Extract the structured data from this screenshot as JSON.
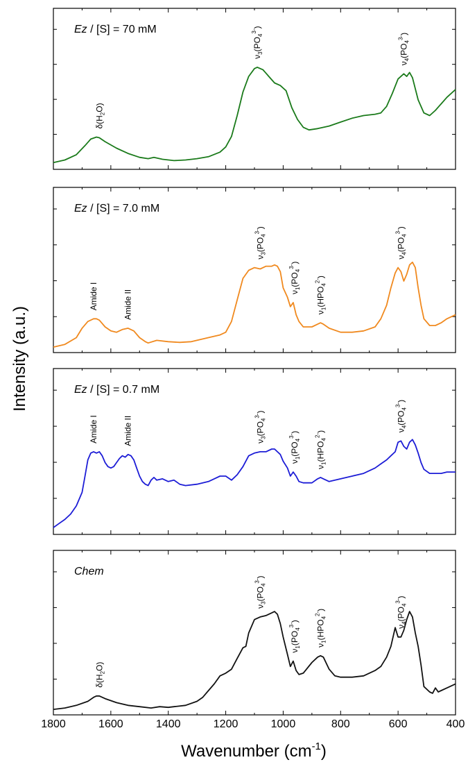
{
  "figure": {
    "ylabel": "Intensity (a.u.)",
    "xlabel_main": "Wavenumber (cm",
    "xlabel_sup": "-1",
    "xlabel_close": ")"
  },
  "chart_data": {
    "type": "line",
    "xlim": [
      1800,
      400
    ],
    "x_reversed": true,
    "xticks": [
      1800,
      1600,
      1400,
      1200,
      1000,
      800,
      600,
      400
    ],
    "xlabel": "Wavenumber (cm-1)",
    "ylabel": "Intensity (a.u.)",
    "grid": false,
    "panels": [
      {
        "label": "Ez / [S] = 70 mM",
        "label_parts": {
          "italic": "Ez",
          "rest": " / [S] = 70 mM"
        },
        "color": "#1a7a1a",
        "x": [
          1800,
          1760,
          1720,
          1690,
          1670,
          1650,
          1640,
          1620,
          1580,
          1540,
          1500,
          1470,
          1450,
          1420,
          1380,
          1340,
          1300,
          1260,
          1220,
          1200,
          1180,
          1160,
          1140,
          1120,
          1100,
          1090,
          1070,
          1050,
          1030,
          1010,
          990,
          970,
          950,
          930,
          910,
          880,
          840,
          800,
          760,
          720,
          680,
          660,
          640,
          620,
          600,
          580,
          570,
          560,
          550,
          530,
          510,
          490,
          470,
          450,
          430,
          400
        ],
        "y": [
          0.02,
          0.04,
          0.08,
          0.15,
          0.2,
          0.215,
          0.21,
          0.18,
          0.13,
          0.09,
          0.06,
          0.05,
          0.06,
          0.045,
          0.035,
          0.04,
          0.05,
          0.065,
          0.1,
          0.14,
          0.22,
          0.38,
          0.56,
          0.68,
          0.74,
          0.75,
          0.73,
          0.68,
          0.63,
          0.61,
          0.57,
          0.44,
          0.35,
          0.29,
          0.27,
          0.28,
          0.3,
          0.33,
          0.36,
          0.38,
          0.39,
          0.4,
          0.45,
          0.55,
          0.66,
          0.7,
          0.68,
          0.71,
          0.67,
          0.5,
          0.4,
          0.38,
          0.42,
          0.47,
          0.52,
          0.58
        ]
      },
      {
        "label": "Ez / [S] = 7.0 mM",
        "label_parts": {
          "italic": "Ez",
          "rest": " / [S] = 7.0 mM"
        },
        "color": "#f0891e",
        "x": [
          1800,
          1760,
          1720,
          1700,
          1680,
          1660,
          1650,
          1640,
          1620,
          1600,
          1580,
          1560,
          1540,
          1520,
          1500,
          1480,
          1470,
          1440,
          1400,
          1360,
          1320,
          1280,
          1240,
          1220,
          1200,
          1180,
          1160,
          1140,
          1120,
          1100,
          1080,
          1060,
          1040,
          1030,
          1020,
          1010,
          1000,
          985,
          975,
          965,
          955,
          945,
          930,
          900,
          880,
          870,
          860,
          840,
          800,
          760,
          720,
          680,
          660,
          640,
          625,
          610,
          600,
          590,
          580,
          570,
          560,
          550,
          540,
          530,
          520,
          510,
          490,
          470,
          450,
          430,
          400
        ],
        "y": [
          0.01,
          0.03,
          0.08,
          0.15,
          0.2,
          0.22,
          0.22,
          0.21,
          0.16,
          0.13,
          0.12,
          0.14,
          0.15,
          0.13,
          0.08,
          0.05,
          0.04,
          0.06,
          0.05,
          0.045,
          0.05,
          0.07,
          0.09,
          0.1,
          0.12,
          0.2,
          0.36,
          0.52,
          0.58,
          0.6,
          0.59,
          0.61,
          0.61,
          0.62,
          0.61,
          0.57,
          0.45,
          0.38,
          0.31,
          0.34,
          0.25,
          0.2,
          0.16,
          0.16,
          0.18,
          0.19,
          0.18,
          0.15,
          0.12,
          0.12,
          0.13,
          0.16,
          0.22,
          0.32,
          0.45,
          0.56,
          0.6,
          0.57,
          0.5,
          0.55,
          0.62,
          0.64,
          0.6,
          0.45,
          0.32,
          0.22,
          0.17,
          0.17,
          0.19,
          0.22,
          0.25
        ]
      },
      {
        "label": "Ez / [S] = 0.7 mM",
        "label_parts": {
          "italic": "Ez",
          "rest": " / [S] = 0.7 mM"
        },
        "color": "#1c1cd6",
        "x": [
          1800,
          1780,
          1760,
          1740,
          1720,
          1700,
          1690,
          1680,
          1670,
          1660,
          1650,
          1640,
          1630,
          1620,
          1610,
          1600,
          1590,
          1580,
          1570,
          1560,
          1550,
          1540,
          1530,
          1520,
          1510,
          1500,
          1490,
          1480,
          1470,
          1460,
          1450,
          1440,
          1420,
          1400,
          1380,
          1360,
          1340,
          1300,
          1260,
          1240,
          1220,
          1200,
          1180,
          1160,
          1140,
          1120,
          1100,
          1080,
          1060,
          1040,
          1030,
          1020,
          1010,
          1000,
          985,
          975,
          965,
          955,
          945,
          930,
          900,
          880,
          870,
          860,
          840,
          800,
          760,
          720,
          680,
          660,
          640,
          625,
          610,
          600,
          590,
          580,
          570,
          560,
          550,
          540,
          530,
          520,
          510,
          490,
          470,
          450,
          430,
          400
        ],
        "y": [
          0.02,
          0.05,
          0.08,
          0.12,
          0.18,
          0.28,
          0.4,
          0.52,
          0.57,
          0.58,
          0.57,
          0.58,
          0.55,
          0.5,
          0.47,
          0.46,
          0.47,
          0.5,
          0.53,
          0.55,
          0.54,
          0.56,
          0.55,
          0.52,
          0.46,
          0.4,
          0.36,
          0.34,
          0.33,
          0.37,
          0.39,
          0.37,
          0.38,
          0.36,
          0.37,
          0.34,
          0.33,
          0.34,
          0.36,
          0.38,
          0.4,
          0.4,
          0.37,
          0.41,
          0.47,
          0.55,
          0.57,
          0.58,
          0.58,
          0.6,
          0.6,
          0.58,
          0.56,
          0.51,
          0.46,
          0.4,
          0.43,
          0.4,
          0.36,
          0.35,
          0.35,
          0.38,
          0.39,
          0.38,
          0.36,
          0.38,
          0.4,
          0.42,
          0.46,
          0.49,
          0.52,
          0.55,
          0.58,
          0.65,
          0.66,
          0.62,
          0.6,
          0.65,
          0.67,
          0.63,
          0.57,
          0.5,
          0.45,
          0.42,
          0.42,
          0.42,
          0.43,
          0.43
        ]
      },
      {
        "label": "Chem",
        "label_parts": {
          "italic": "Chem",
          "rest": ""
        },
        "color": "#111111",
        "x": [
          1800,
          1760,
          1720,
          1680,
          1660,
          1650,
          1640,
          1620,
          1580,
          1540,
          1500,
          1460,
          1430,
          1400,
          1380,
          1340,
          1300,
          1280,
          1260,
          1240,
          1220,
          1200,
          1180,
          1160,
          1140,
          1130,
          1120,
          1100,
          1080,
          1060,
          1040,
          1030,
          1020,
          1010,
          1000,
          985,
          975,
          965,
          955,
          945,
          930,
          900,
          880,
          870,
          860,
          840,
          820,
          800,
          760,
          720,
          680,
          660,
          640,
          625,
          610,
          600,
          590,
          580,
          570,
          560,
          550,
          540,
          530,
          520,
          510,
          490,
          480,
          470,
          460,
          450,
          430,
          400
        ],
        "y": [
          0.01,
          0.02,
          0.04,
          0.07,
          0.1,
          0.11,
          0.11,
          0.09,
          0.06,
          0.04,
          0.03,
          0.02,
          0.03,
          0.025,
          0.03,
          0.04,
          0.07,
          0.1,
          0.15,
          0.2,
          0.26,
          0.28,
          0.31,
          0.39,
          0.47,
          0.48,
          0.58,
          0.68,
          0.7,
          0.71,
          0.73,
          0.74,
          0.72,
          0.65,
          0.55,
          0.42,
          0.33,
          0.37,
          0.3,
          0.27,
          0.28,
          0.36,
          0.4,
          0.41,
          0.4,
          0.31,
          0.26,
          0.25,
          0.25,
          0.26,
          0.3,
          0.33,
          0.4,
          0.48,
          0.62,
          0.55,
          0.55,
          0.6,
          0.68,
          0.74,
          0.7,
          0.58,
          0.48,
          0.34,
          0.18,
          0.14,
          0.13,
          0.17,
          0.14,
          0.15,
          0.17,
          0.2
        ]
      }
    ],
    "annotations": [
      [
        {
          "x": 1640,
          "base": "δ(H",
          "sub": "2",
          "tail": "O)"
        },
        {
          "x": 1090,
          "base": "ν",
          "sub": "3",
          "tail": "(PO",
          "sub2": "4",
          "sup": "3-",
          "end": ")"
        },
        {
          "x": 580,
          "base": "ν",
          "sub": "4",
          "tail": "(PO",
          "sub2": "4",
          "sup": "3-",
          "end": ")"
        }
      ],
      [
        {
          "x": 1660,
          "text": "Amide I"
        },
        {
          "x": 1540,
          "text": "Amide II"
        },
        {
          "x": 1080,
          "base": "ν",
          "sub": "3",
          "tail": "(PO",
          "sub2": "4",
          "sup": "3-",
          "end": ")"
        },
        {
          "x": 960,
          "base": "ν",
          "sub": "1",
          "tail": "(PO",
          "sub2": "4",
          "sup": "3-",
          "end": ")"
        },
        {
          "x": 870,
          "base": "ν",
          "sub": "1",
          "tail": "(HPO",
          "sub2": "4",
          "sup": "2-",
          "end": ")"
        },
        {
          "x": 590,
          "base": "ν",
          "sub": "4",
          "tail": "(PO",
          "sub2": "4",
          "sup": "3-",
          "end": ")"
        }
      ],
      [
        {
          "x": 1660,
          "text": "Amide I"
        },
        {
          "x": 1540,
          "text": "Amide II"
        },
        {
          "x": 1080,
          "base": "ν",
          "sub": "3",
          "tail": "(PO",
          "sub2": "4",
          "sup": "3-",
          "end": ")"
        },
        {
          "x": 960,
          "base": "ν",
          "sub": "1",
          "tail": "(PO",
          "sub2": "4",
          "sup": "3-",
          "end": ")"
        },
        {
          "x": 870,
          "base": "ν",
          "sub": "1",
          "tail": "(HPO",
          "sub2": "4",
          "sup": "2-",
          "end": ")"
        },
        {
          "x": 590,
          "base": "ν",
          "sub": "4",
          "tail": "(PO",
          "sub2": "4",
          "sup": "3-",
          "end": ")"
        }
      ],
      [
        {
          "x": 1640,
          "base": "δ(H",
          "sub": "2",
          "tail": "O)"
        },
        {
          "x": 1080,
          "base": "ν",
          "sub": "3",
          "tail": "(PO",
          "sub2": "4",
          "sup": "3-",
          "end": ")"
        },
        {
          "x": 960,
          "base": "ν",
          "sub": "1",
          "tail": "(PO",
          "sub2": "4",
          "sup": "3-",
          "end": ")"
        },
        {
          "x": 870,
          "base": "ν",
          "sub": "1",
          "tail": "(HPO",
          "sub2": "4",
          "sup": "2-",
          "end": ")"
        },
        {
          "x": 590,
          "base": "ν",
          "sub": "4",
          "tail": "(PO",
          "sub2": "4",
          "sup": "3-",
          "end": ")"
        }
      ]
    ]
  }
}
